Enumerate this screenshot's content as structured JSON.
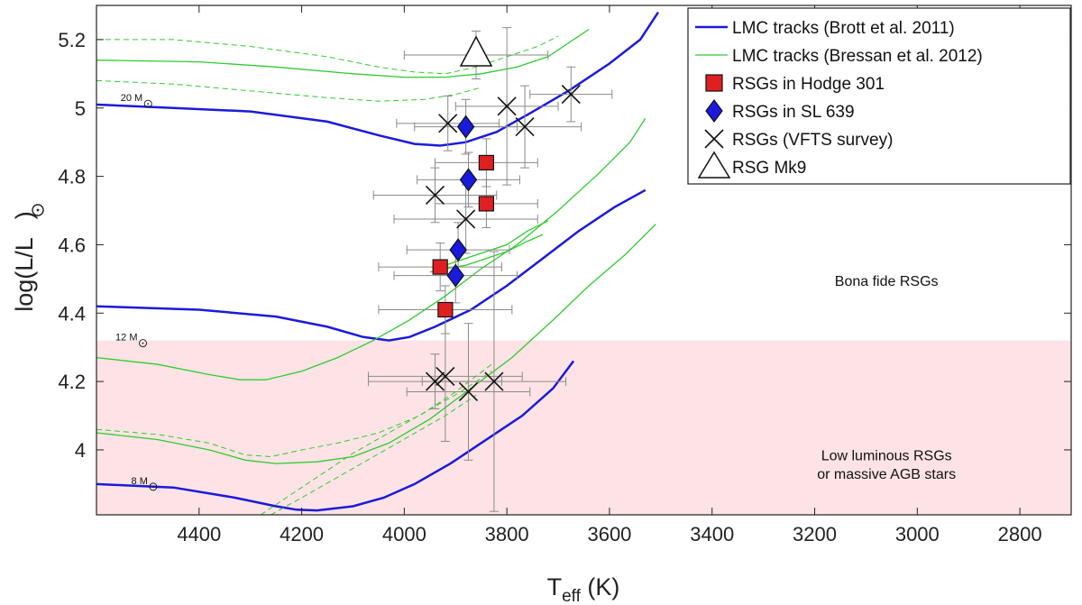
{
  "chart_data": {
    "type": "scatter",
    "xlabel_main": "T",
    "xlabel_sub": "eff",
    "xlabel_unit": " (K)",
    "ylabel_text": "log(L/L",
    "ylabel_close": ")",
    "xlim": [
      4600,
      2700
    ],
    "ylim": [
      3.81,
      5.3
    ],
    "xticks": [
      4400,
      4200,
      4000,
      3800,
      3600,
      3400,
      3200,
      3000,
      2800
    ],
    "yticks": [
      4,
      4.2,
      4.4,
      4.6,
      4.8,
      5,
      5.2
    ],
    "ytick_labels": [
      "4",
      "4.2",
      "4.4",
      "4.6",
      "4.8",
      "5",
      "5.2"
    ],
    "shaded_region": {
      "y_from": 3.81,
      "y_to": 4.32,
      "color": "#fde3e5"
    },
    "annotations": [
      {
        "text": "Bona fide RSGs",
        "x": 3060,
        "y": 4.48
      },
      {
        "text": "Low luminous RSGs",
        "x": 3060,
        "y": 3.97
      },
      {
        "text": "or massive AGB stars",
        "x": 3060,
        "y": 3.915
      }
    ],
    "mass_labels": [
      {
        "text": "20 M",
        "x": 4510,
        "y": 5.02
      },
      {
        "text": "12 M",
        "x": 4520,
        "y": 4.32
      },
      {
        "text": "8 M",
        "x": 4500,
        "y": 3.9
      }
    ],
    "tracks": [
      {
        "name": "LMC tracks (Brott et al. 2011)",
        "color": "#1a1adc",
        "width": 2.5,
        "dash": "",
        "points": [
          [
            4600,
            5.01
          ],
          [
            4450,
            5.0
          ],
          [
            4300,
            4.99
          ],
          [
            4150,
            4.96
          ],
          [
            4050,
            4.92
          ],
          [
            3980,
            4.895
          ],
          [
            3930,
            4.89
          ],
          [
            3880,
            4.9
          ],
          [
            3820,
            4.93
          ],
          [
            3760,
            4.98
          ],
          [
            3680,
            5.05
          ],
          [
            3600,
            5.13
          ],
          [
            3540,
            5.2
          ],
          [
            3505,
            5.28
          ]
        ]
      },
      {
        "name": "Brott 12",
        "color": "#1a1adc",
        "width": 2.5,
        "dash": "",
        "points": [
          [
            4600,
            4.42
          ],
          [
            4400,
            4.41
          ],
          [
            4250,
            4.39
          ],
          [
            4150,
            4.36
          ],
          [
            4080,
            4.33
          ],
          [
            4030,
            4.32
          ],
          [
            3990,
            4.33
          ],
          [
            3940,
            4.36
          ],
          [
            3870,
            4.41
          ],
          [
            3800,
            4.48
          ],
          [
            3730,
            4.56
          ],
          [
            3660,
            4.64
          ],
          [
            3590,
            4.71
          ],
          [
            3530,
            4.76
          ]
        ]
      },
      {
        "name": "Brott 8",
        "color": "#1a1adc",
        "width": 2.5,
        "dash": "",
        "points": [
          [
            4600,
            3.9
          ],
          [
            4450,
            3.89
          ],
          [
            4330,
            3.86
          ],
          [
            4250,
            3.835
          ],
          [
            4210,
            3.825
          ],
          [
            4170,
            3.823
          ],
          [
            4100,
            3.835
          ],
          [
            4040,
            3.86
          ],
          [
            3980,
            3.9
          ],
          [
            3910,
            3.96
          ],
          [
            3840,
            4.03
          ],
          [
            3770,
            4.1
          ],
          [
            3710,
            4.18
          ],
          [
            3670,
            4.26
          ]
        ]
      },
      {
        "name": "LMC tracks (Bressan et al. 2012)",
        "color": "#2ecc2e",
        "width": 1.3,
        "dash": "",
        "points": [
          [
            4600,
            5.14
          ],
          [
            4400,
            5.135
          ],
          [
            4250,
            5.12
          ],
          [
            4100,
            5.1
          ],
          [
            4000,
            5.09
          ],
          [
            3920,
            5.09
          ],
          [
            3850,
            5.1
          ],
          [
            3780,
            5.12
          ],
          [
            3720,
            5.15
          ],
          [
            3670,
            5.2
          ],
          [
            3640,
            5.23
          ]
        ]
      },
      {
        "name": "Bressan 5.2 dashed",
        "color": "#2ecc2e",
        "width": 1.0,
        "dash": "6,4",
        "points": [
          [
            4600,
            5.2
          ],
          [
            4450,
            5.2
          ],
          [
            4300,
            5.18
          ],
          [
            4150,
            5.15
          ],
          [
            4050,
            5.12
          ],
          [
            3980,
            5.105
          ],
          [
            3920,
            5.1
          ],
          [
            3860,
            5.12
          ],
          [
            3800,
            5.15
          ],
          [
            3740,
            5.18
          ],
          [
            3700,
            5.21
          ]
        ]
      },
      {
        "name": "Bressan 5.05 dashed",
        "color": "#2ecc2e",
        "width": 1.0,
        "dash": "6,4",
        "points": [
          [
            4600,
            5.08
          ],
          [
            4450,
            5.07
          ],
          [
            4300,
            5.05
          ],
          [
            4150,
            5.03
          ],
          [
            4050,
            5.02
          ],
          [
            3960,
            5.025
          ],
          [
            3900,
            5.04
          ],
          [
            3850,
            5.06
          ]
        ]
      },
      {
        "name": "Bressan 12",
        "color": "#2ecc2e",
        "width": 1.3,
        "dash": "",
        "points": [
          [
            4600,
            4.27
          ],
          [
            4480,
            4.25
          ],
          [
            4380,
            4.22
          ],
          [
            4320,
            4.205
          ],
          [
            4270,
            4.205
          ],
          [
            4200,
            4.23
          ],
          [
            4130,
            4.27
          ],
          [
            4060,
            4.32
          ],
          [
            3990,
            4.38
          ],
          [
            3920,
            4.45
          ],
          [
            3850,
            4.53
          ],
          [
            3780,
            4.6
          ],
          [
            3700,
            4.7
          ],
          [
            3620,
            4.81
          ],
          [
            3560,
            4.9
          ],
          [
            3530,
            4.97
          ]
        ]
      },
      {
        "name": "Bressan 8",
        "color": "#2ecc2e",
        "width": 1.3,
        "dash": "",
        "points": [
          [
            4600,
            4.05
          ],
          [
            4480,
            4.03
          ],
          [
            4380,
            4.0
          ],
          [
            4310,
            3.97
          ],
          [
            4250,
            3.96
          ],
          [
            4170,
            3.965
          ],
          [
            4100,
            3.98
          ],
          [
            4030,
            4.02
          ],
          [
            3950,
            4.09
          ],
          [
            3870,
            4.18
          ],
          [
            3790,
            4.27
          ],
          [
            3710,
            4.38
          ],
          [
            3640,
            4.48
          ],
          [
            3570,
            4.57
          ],
          [
            3510,
            4.66
          ]
        ]
      },
      {
        "name": "Bressan 8 dashed",
        "color": "#2ecc2e",
        "width": 1.0,
        "dash": "6,4",
        "points": [
          [
            4600,
            4.06
          ],
          [
            4480,
            4.045
          ],
          [
            4380,
            4.02
          ],
          [
            4310,
            3.985
          ],
          [
            4260,
            3.98
          ],
          [
            4200,
            4.0
          ],
          [
            4130,
            4.02
          ],
          [
            4050,
            4.05
          ],
          [
            3970,
            4.1
          ],
          [
            3900,
            4.17
          ],
          [
            3830,
            4.25
          ]
        ]
      },
      {
        "name": "Bressan 12 loop",
        "color": "#2ecc2e",
        "width": 1.3,
        "dash": "",
        "points": [
          [
            3950,
            4.52
          ],
          [
            3920,
            4.53
          ],
          [
            3880,
            4.54
          ],
          [
            3840,
            4.56
          ],
          [
            3800,
            4.58
          ],
          [
            3760,
            4.61
          ],
          [
            3730,
            4.63
          ]
        ]
      },
      {
        "name": "Bressan 12 loop 2",
        "color": "#2ecc2e",
        "width": 1.3,
        "dash": "",
        "points": [
          [
            3940,
            4.53
          ],
          [
            3900,
            4.55
          ],
          [
            3850,
            4.575
          ],
          [
            3800,
            4.6
          ],
          [
            3760,
            4.64
          ],
          [
            3720,
            4.67
          ]
        ]
      },
      {
        "name": "Bressan diag dashed 1",
        "color": "#2ecc2e",
        "width": 1.0,
        "dash": "6,4",
        "points": [
          [
            4280,
            3.81
          ],
          [
            4230,
            3.86
          ],
          [
            4170,
            3.92
          ],
          [
            4100,
            3.99
          ],
          [
            4030,
            4.05
          ],
          [
            3960,
            4.11
          ],
          [
            3890,
            4.17
          ],
          [
            3830,
            4.23
          ]
        ]
      },
      {
        "name": "Bressan diag dashed 2",
        "color": "#2ecc2e",
        "width": 1.0,
        "dash": "6,4",
        "points": [
          [
            4260,
            3.81
          ],
          [
            4200,
            3.86
          ],
          [
            4130,
            3.92
          ],
          [
            4060,
            3.98
          ],
          [
            3990,
            4.04
          ],
          [
            3920,
            4.1
          ],
          [
            3860,
            4.16
          ]
        ]
      }
    ],
    "series": [
      {
        "name": "RSGs in Hodge 301",
        "marker": "square",
        "color": "#e02020",
        "points": [
          {
            "x": 3840,
            "y": 4.84,
            "xerr": 100,
            "yerr": 0.07
          },
          {
            "x": 3840,
            "y": 4.72,
            "xerr": 100,
            "yerr": 0.07
          },
          {
            "x": 3930,
            "y": 4.535,
            "xerr": 120,
            "yerr": 0.07
          },
          {
            "x": 3920,
            "y": 4.41,
            "xerr": 130,
            "yerr": 0.07
          }
        ]
      },
      {
        "name": "RSGs in SL 639",
        "marker": "diamond",
        "color": "#1a1adc",
        "points": [
          {
            "x": 3880,
            "y": 4.945,
            "xerr": 100,
            "yerr": 0.08
          },
          {
            "x": 3875,
            "y": 4.79,
            "xerr": 100,
            "yerr": 0.08
          },
          {
            "x": 3895,
            "y": 4.585,
            "xerr": 100,
            "yerr": 0.08
          },
          {
            "x": 3900,
            "y": 4.51,
            "xerr": 120,
            "yerr": 0.08
          }
        ]
      },
      {
        "name": "RSGs (VFTS survey)",
        "marker": "x",
        "color": "#111111",
        "points": [
          {
            "x": 3915,
            "y": 4.955,
            "xerr": 100,
            "yerr": 0.08
          },
          {
            "x": 3800,
            "y": 5.005,
            "xerr": 100,
            "yerr": 0.23
          },
          {
            "x": 3765,
            "y": 4.945,
            "xerr": 110,
            "yerr": 0.12
          },
          {
            "x": 3675,
            "y": 5.04,
            "xerr": 80,
            "yerr": 0.08
          },
          {
            "x": 3940,
            "y": 4.745,
            "xerr": 120,
            "yerr": 0.08
          },
          {
            "x": 3880,
            "y": 4.675,
            "xerr": 140,
            "yerr": 0.1
          },
          {
            "x": 3940,
            "y": 4.2,
            "xerr": 130,
            "yerr": 0.08
          },
          {
            "x": 3920,
            "y": 4.215,
            "xerr": 150,
            "yerr": 0.19
          },
          {
            "x": 3875,
            "y": 4.17,
            "xerr": 120,
            "yerr": 0.2
          },
          {
            "x": 3825,
            "y": 4.2,
            "xerr": 140,
            "yerr": 0.38
          }
        ]
      },
      {
        "name": "RSG Mk9",
        "marker": "triangle",
        "color": "#ffffff",
        "points": [
          {
            "x": 3860,
            "y": 5.155,
            "xerr": 140,
            "yerr": 0.07
          }
        ]
      }
    ],
    "legend": {
      "position": "top-right",
      "entries": [
        {
          "label": "LMC tracks (Brott et al. 2011)",
          "marker": "line",
          "color": "#1a1adc"
        },
        {
          "label": "LMC tracks (Bressan et al. 2012)",
          "marker": "line",
          "color": "#2ecc2e"
        },
        {
          "label": "RSGs in Hodge 301",
          "marker": "square",
          "color": "#e02020"
        },
        {
          "label": "RSGs in SL 639",
          "marker": "diamond",
          "color": "#1a1adc"
        },
        {
          "label": "RSGs (VFTS survey)",
          "marker": "x",
          "color": "#111111"
        },
        {
          "label": "RSG Mk9",
          "marker": "triangle",
          "color": "#ffffff"
        }
      ]
    }
  }
}
